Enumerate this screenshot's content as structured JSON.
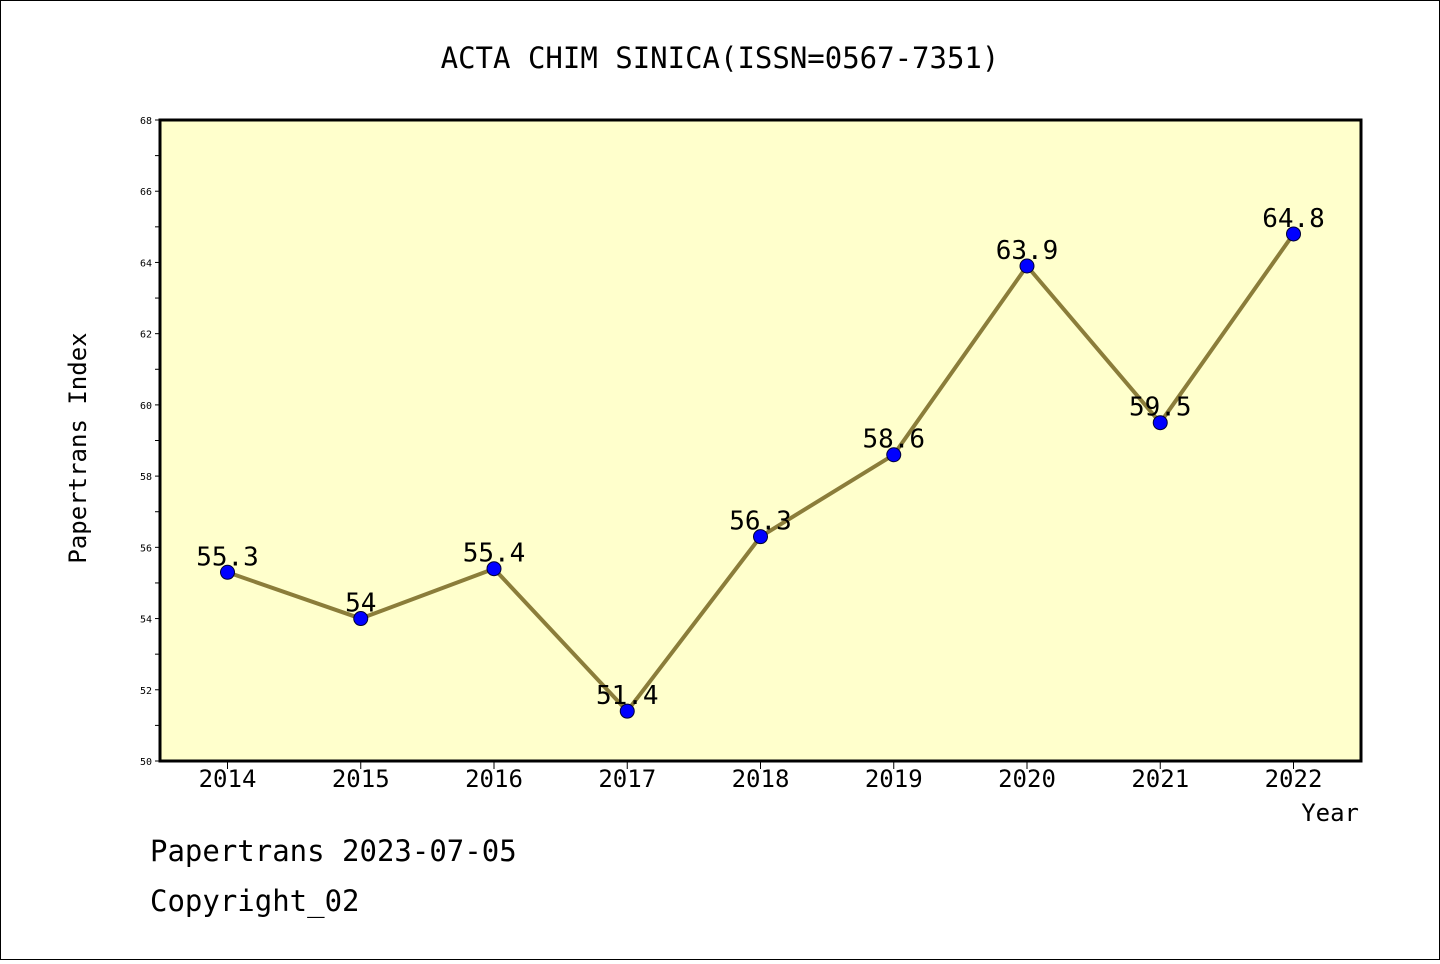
{
  "chart_data": {
    "type": "line",
    "title": "ACTA CHIM SINICA(ISSN=0567-7351)",
    "xlabel": "Year",
    "ylabel": "Papertrans Index",
    "x": [
      "2014",
      "2015",
      "2016",
      "2017",
      "2018",
      "2019",
      "2020",
      "2021",
      "2022"
    ],
    "series": [
      {
        "values": [
          55.3,
          54,
          55.4,
          51.4,
          56.3,
          58.6,
          63.9,
          59.5,
          64.8
        ],
        "labels": [
          "55.3",
          "54",
          "55.4",
          "51.4",
          "56.3",
          "58.6",
          "63.9",
          "59.5",
          "64.8"
        ]
      }
    ],
    "ylim": [
      50,
      68
    ],
    "yticks": [
      "50",
      "52",
      "54",
      "56",
      "58",
      "60",
      "62",
      "64",
      "66",
      "68"
    ],
    "grid": false,
    "line_color": "#8b7d3a",
    "marker_color": "#0000ff",
    "plot_background": "#ffffcc"
  },
  "footer": {
    "line1": "Papertrans 2023-07-05",
    "line2": "Copyright_02"
  }
}
